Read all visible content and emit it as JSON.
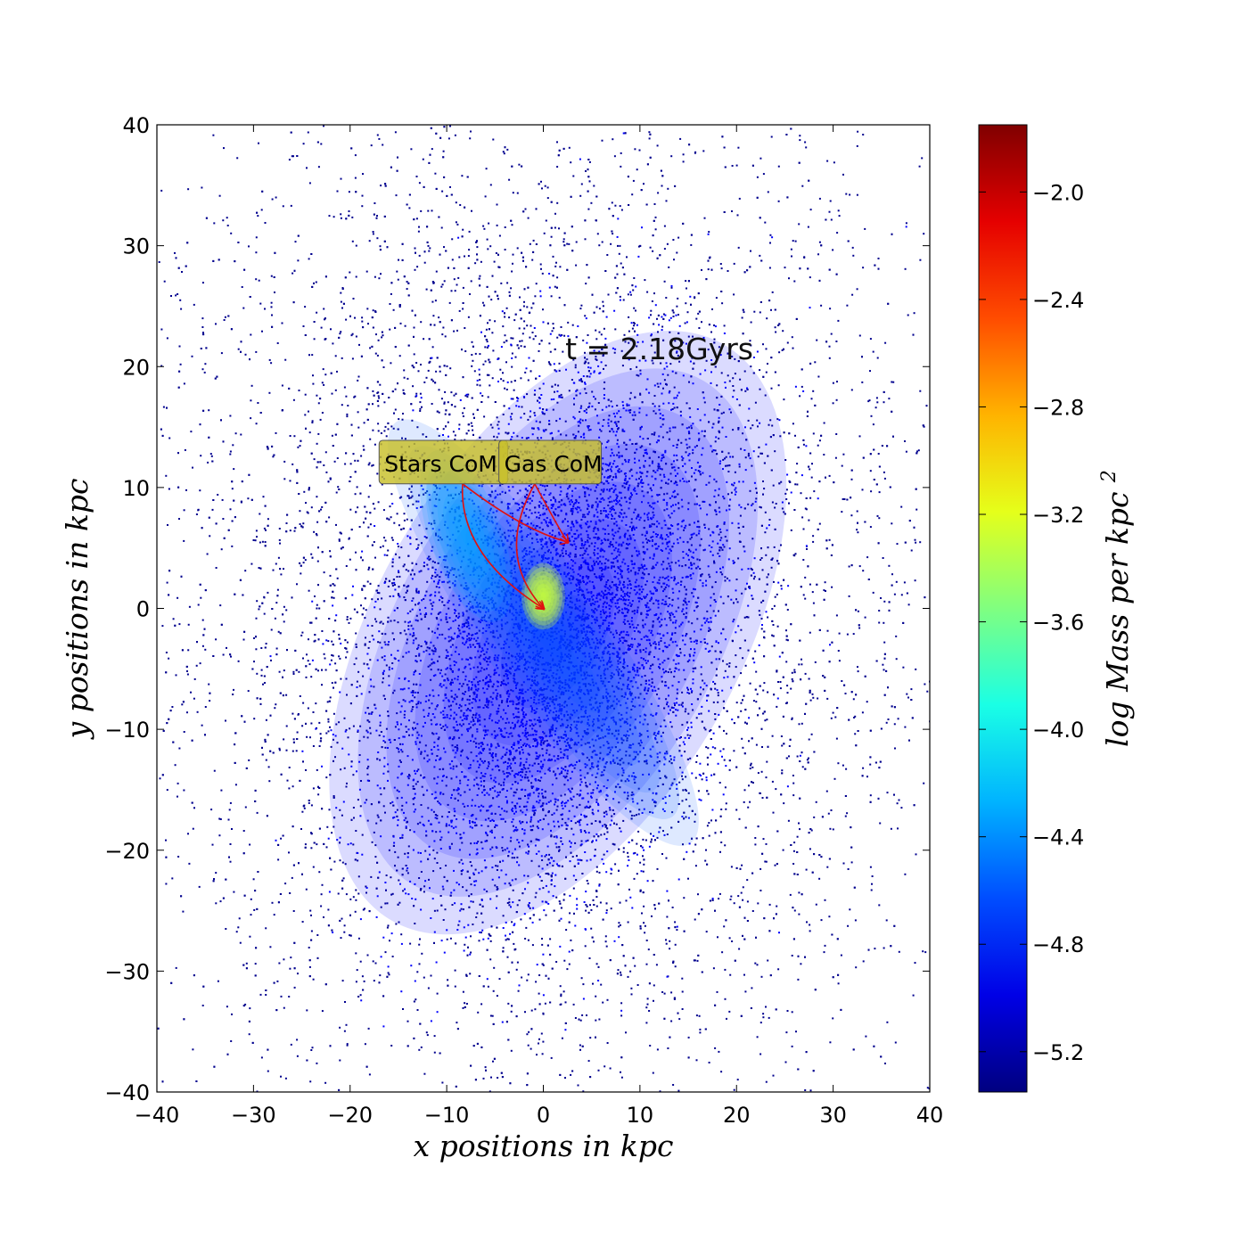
{
  "chart_data": {
    "type": "heatmap",
    "title": "",
    "time_label": "t = 2.18Gyrs",
    "xlabel": "x positions in kpc",
    "ylabel": "y positions in kpc",
    "xlim": [
      -40,
      40
    ],
    "ylim": [
      -40,
      40
    ],
    "x_ticks": [
      -40,
      -30,
      -20,
      -10,
      0,
      10,
      20,
      30,
      40
    ],
    "y_ticks": [
      -40,
      -30,
      -20,
      -10,
      0,
      10,
      20,
      30,
      40
    ],
    "tick_labels_x": [
      "−40",
      "−30",
      "−20",
      "−10",
      "0",
      "10",
      "20",
      "30",
      "40"
    ],
    "tick_labels_y": [
      "−40",
      "−30",
      "−20",
      "−10",
      "0",
      "10",
      "20",
      "30",
      "40"
    ],
    "colorbar": {
      "label": "log Mass per kpc²",
      "label_text": "log Mass per kpc",
      "label_sup": "2",
      "colormap": "jet",
      "vmin": -5.35,
      "vmax": -1.75,
      "ticks": [
        -2.0,
        -2.4,
        -2.8,
        -3.2,
        -3.6,
        -4.0,
        -4.4,
        -4.8,
        -5.2
      ],
      "tick_labels": [
        "−2.0",
        "−2.4",
        "−2.8",
        "−3.2",
        "−3.6",
        "−4.0",
        "−4.4",
        "−4.8",
        "−5.2"
      ]
    },
    "structure": {
      "outer_halo": {
        "center": [
          -1,
          0
        ],
        "semi_axes": [
          38,
          40
        ],
        "peak": -5.3
      },
      "blue_disk": {
        "center": [
          1.5,
          -2
        ],
        "semi_axes": [
          15,
          22
        ],
        "angle_deg": -30,
        "peak": -4.9
      },
      "bar": {
        "center": [
          0,
          -2
        ],
        "semi_axes": [
          5,
          17
        ],
        "angle_deg": 35,
        "peak": -4.6
      },
      "left_arm_blob": {
        "center": [
          -8,
          6
        ],
        "semi_axes": [
          3,
          6
        ],
        "angle_deg": 20,
        "peak": -4.3
      },
      "core": {
        "center": [
          0,
          1
        ],
        "semi_axes": [
          1.8,
          2.2
        ],
        "peak": -3.3
      }
    },
    "annotations": [
      {
        "text": "Stars CoM",
        "box_color": "#c8c02a",
        "arrow_color": "#e01010",
        "arrow_targets": [
          [
            0,
            0
          ],
          [
            2.5,
            5.5
          ]
        ]
      },
      {
        "text": "Gas CoM",
        "box_color": "#c8c02a",
        "arrow_color": "#e01010",
        "arrow_targets": [
          [
            0,
            0
          ],
          [
            2.5,
            5.5
          ]
        ]
      }
    ]
  }
}
